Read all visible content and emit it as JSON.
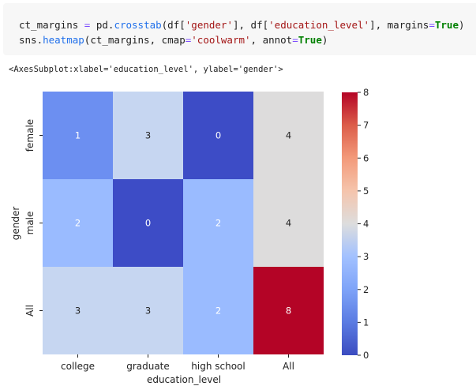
{
  "code_cell": {
    "line1": [
      {
        "t": "ct_margins ",
        "c": ""
      },
      {
        "t": "=",
        "c": "op"
      },
      {
        "t": " pd.",
        "c": ""
      },
      {
        "t": "crosstab",
        "c": "fn"
      },
      {
        "t": "(df[",
        "c": ""
      },
      {
        "t": "'gender'",
        "c": "str"
      },
      {
        "t": "], df[",
        "c": ""
      },
      {
        "t": "'education_level'",
        "c": "str"
      },
      {
        "t": "], margins",
        "c": ""
      },
      {
        "t": "=",
        "c": "op"
      },
      {
        "t": "True",
        "c": "kw"
      },
      {
        "t": ")",
        "c": ""
      }
    ],
    "line2": [
      {
        "t": "sns.",
        "c": ""
      },
      {
        "t": "heatmap",
        "c": "fn"
      },
      {
        "t": "(ct_margins, cmap",
        "c": ""
      },
      {
        "t": "=",
        "c": "op"
      },
      {
        "t": "'coolwarm'",
        "c": "str"
      },
      {
        "t": ", annot",
        "c": ""
      },
      {
        "t": "=",
        "c": "op"
      },
      {
        "t": "True",
        "c": "kw"
      },
      {
        "t": ")",
        "c": ""
      }
    ]
  },
  "output_repr": "<AxesSubplot:xlabel='education_level', ylabel='gender'>",
  "chart_data": {
    "type": "heatmap",
    "cmap": "coolwarm",
    "x_categories": [
      "college",
      "graduate",
      "high school",
      "All"
    ],
    "y_categories": [
      "female",
      "male",
      "All"
    ],
    "values": [
      [
        1,
        3,
        0,
        4
      ],
      [
        2,
        0,
        2,
        4
      ],
      [
        3,
        3,
        2,
        8
      ]
    ],
    "xlabel": "education_level",
    "ylabel": "gender",
    "colorbar": {
      "min": 0,
      "max": 8,
      "ticks": [
        0,
        1,
        2,
        3,
        4,
        5,
        6,
        7,
        8
      ]
    },
    "cell_colors": {
      "0": "#3d4cc6",
      "1": "#6c8ff1",
      "2": "#9abbff",
      "3": "#c6d6f1",
      "4": "#dddcdc",
      "8": "#b40426"
    }
  }
}
